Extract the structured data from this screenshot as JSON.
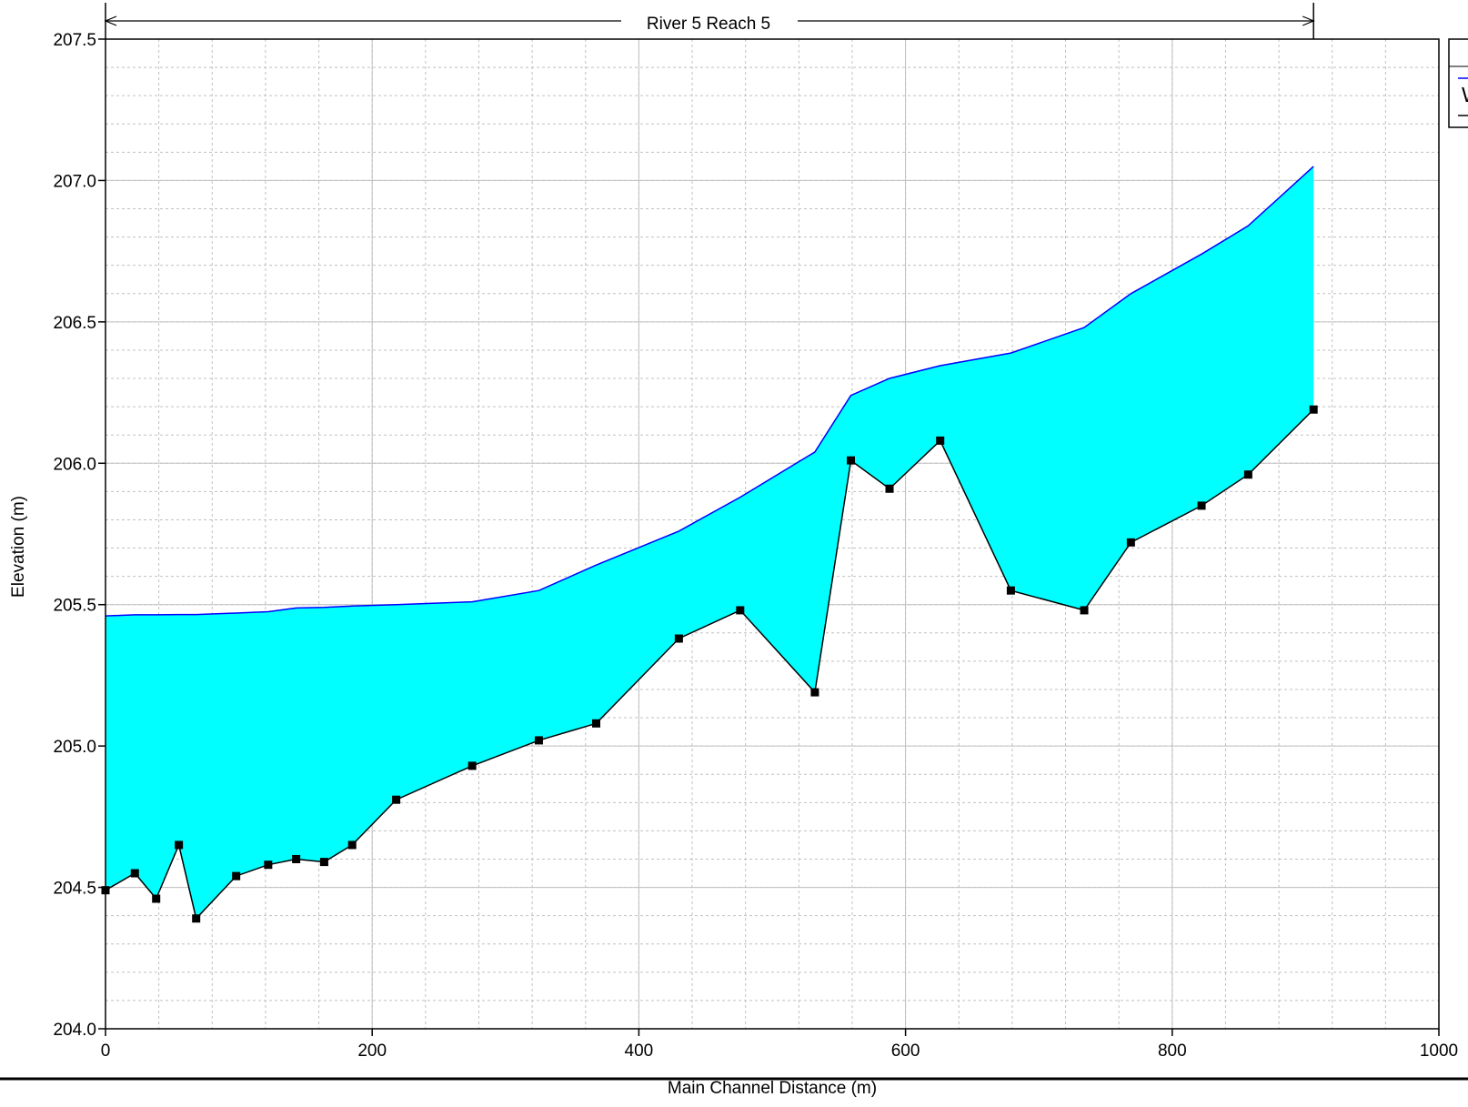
{
  "chart_data": {
    "type": "area",
    "reach_label": "River 5 Reach 5",
    "xlabel": "Main Channel Distance (m)",
    "ylabel": "Elevation (m)",
    "xlim": [
      0,
      1000
    ],
    "ylim": [
      204.0,
      207.5
    ],
    "x_ticks": [
      "0",
      "200",
      "400",
      "600",
      "800",
      "1000"
    ],
    "y_ticks": [
      "204.0",
      "204.5",
      "205.0",
      "205.5",
      "206.0",
      "206.5",
      "207.0",
      "207.5"
    ],
    "x_minor_step": 40,
    "y_minor_step": 0.1,
    "grid": true,
    "reach_start": 0,
    "reach_end": 906,
    "legend_placement": "right",
    "legend_glyphs": [
      "W"
    ],
    "colors": {
      "water_fill": "#00ffff",
      "water_surface": "#0000ff",
      "ground": "#000000",
      "grid": "#c0c0c0"
    },
    "series": [
      {
        "x": [
          0,
          22,
          38,
          55,
          68,
          98,
          122,
          143,
          164,
          185,
          218,
          275,
          325,
          368,
          430,
          476,
          532,
          559,
          588,
          626,
          679,
          734,
          769,
          822,
          857,
          906
        ],
        "values": [
          205.46,
          205.464,
          205.464,
          205.465,
          205.465,
          205.47,
          205.475,
          205.488,
          205.49,
          205.495,
          205.5,
          205.51,
          205.55,
          205.64,
          205.76,
          205.88,
          206.04,
          206.24,
          206.3,
          206.345,
          206.39,
          206.48,
          206.6,
          206.74,
          206.84,
          207.05
        ]
      },
      {
        "x": [
          0,
          22,
          38,
          55,
          68,
          98,
          122,
          143,
          164,
          185,
          218,
          275,
          325,
          368,
          430,
          476,
          532,
          559,
          588,
          626,
          679,
          734,
          769,
          822,
          857,
          906
        ],
        "values": [
          204.49,
          204.55,
          204.46,
          204.65,
          204.39,
          204.54,
          204.58,
          204.6,
          204.59,
          204.65,
          204.81,
          204.93,
          205.02,
          205.08,
          205.38,
          205.48,
          205.19,
          206.01,
          205.91,
          206.08,
          205.55,
          205.48,
          205.72,
          205.85,
          205.96,
          206.19
        ]
      }
    ]
  }
}
